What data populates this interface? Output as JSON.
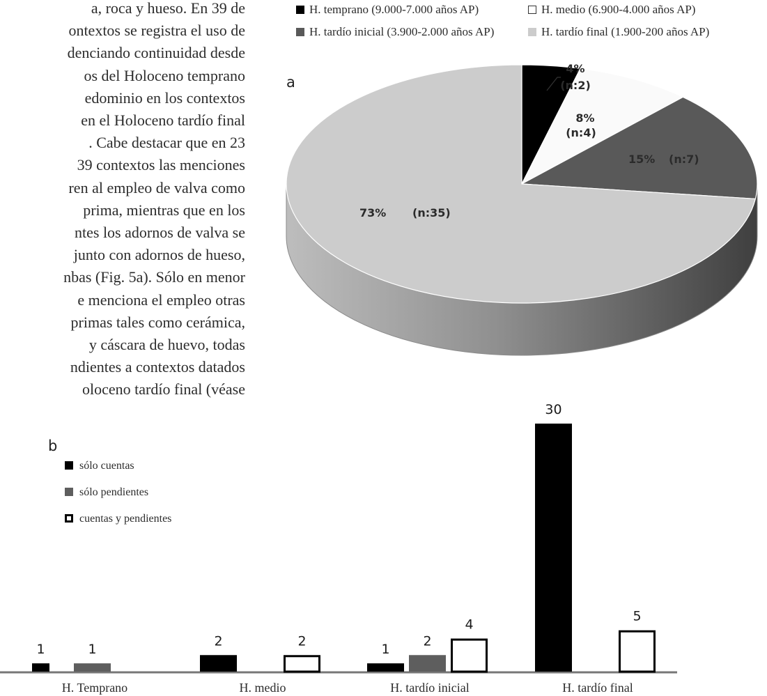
{
  "text_column": {
    "lines": [
      "a, roca y hueso. En 39 de",
      "ontextos se registra el uso de",
      "denciando continuidad desde",
      "os del Holoceno temprano",
      "edominio en los contextos",
      "en el Holoceno tardío final",
      ". Cabe destacar que en 23",
      "39 contextos las menciones",
      "ren al empleo de valva como",
      "prima, mientras que en los",
      "ntes los adornos de valva se",
      "junto con adornos de hueso,",
      "nbas (Fig. 5a). Sólo en menor",
      "e menciona el empleo otras",
      "primas tales como cerámica,",
      "y cáscara de huevo, todas",
      "ndientes a contextos datados",
      "oloceno tardío final (véase"
    ]
  },
  "chart_data": [
    {
      "type": "pie",
      "panel_label": "a",
      "legend": [
        {
          "label": "H. temprano (9.000-7.000 años AP)",
          "color": "#000000"
        },
        {
          "label": "H. medio (6.900-4.000 años AP)",
          "color": "#ffffff"
        },
        {
          "label": "H. tardío inicial (3.900-2.000 años AP)",
          "color": "#595959"
        },
        {
          "label": "H. tardío final (1.900-200 años AP)",
          "color": "#cccccc"
        }
      ],
      "slices": [
        {
          "series": "H. temprano",
          "value": 4,
          "n": 2,
          "label": "4%",
          "sublabel": "(n:2)",
          "color": "#000000"
        },
        {
          "series": "H. medio",
          "value": 8,
          "n": 4,
          "label": "8%",
          "sublabel": "(n:4)",
          "color": "#fafafa"
        },
        {
          "series": "H. tardío inicial",
          "value": 15,
          "n": 7,
          "label": "15%",
          "sublabel": "(n:7)",
          "color": "#595959"
        },
        {
          "series": "H. tardío final",
          "value": 73,
          "n": 35,
          "label": "73%",
          "sublabel": "(n:35)",
          "color": "#cccccc"
        }
      ]
    },
    {
      "type": "bar",
      "panel_label": "b",
      "categories": [
        "H. Temprano",
        "H. medio",
        "H. tardío inicial",
        "H. tardío final"
      ],
      "series": [
        {
          "name": "sólo cuentas",
          "values": [
            1,
            2,
            1,
            30
          ],
          "style": "filled",
          "color": "#000000"
        },
        {
          "name": "sólo pendientes",
          "values": [
            1,
            null,
            2,
            null
          ],
          "style": "filled",
          "color": "#5e5e5e"
        },
        {
          "name": "cuentas y pendientes",
          "values": [
            null,
            2,
            4,
            5
          ],
          "style": "outline",
          "color": "#000000"
        }
      ],
      "ylim": [
        0,
        30
      ],
      "grid": false,
      "legend_position": "top-left"
    }
  ]
}
